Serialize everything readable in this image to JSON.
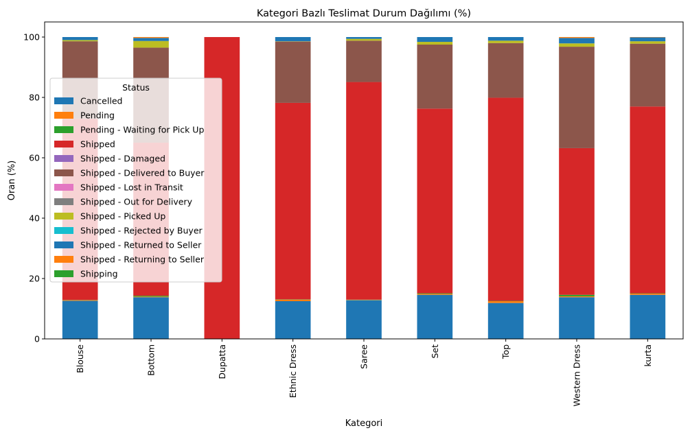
{
  "chart_data": {
    "type": "bar",
    "stacked": true,
    "title": "Kategori Bazlı Teslimat Durum Dağılımı (%)",
    "xlabel": "Kategori",
    "ylabel": "Oran (%)",
    "ylim": [
      0,
      105
    ],
    "yticks": [
      0,
      20,
      40,
      60,
      80,
      100
    ],
    "grid": false,
    "legend": {
      "title": "Status",
      "position": "center-left"
    },
    "categories": [
      "Blouse",
      "Bottom",
      "Dupatta",
      "Ethnic Dress",
      "Saree",
      "Set",
      "Top",
      "Western Dress",
      "kurta"
    ],
    "series": [
      {
        "name": "Cancelled",
        "color": "#1f77b4",
        "values": [
          12.6,
          13.8,
          0,
          12.5,
          12.8,
          14.6,
          11.9,
          13.8,
          14.6
        ]
      },
      {
        "name": "Pending",
        "color": "#ff7f0e",
        "values": [
          0.2,
          0.2,
          0,
          0.5,
          0.1,
          0.3,
          0.6,
          0.3,
          0.4
        ]
      },
      {
        "name": "Pending - Waiting for Pick Up",
        "color": "#2ca02c",
        "values": [
          0.1,
          0.3,
          0,
          0.1,
          0.1,
          0.2,
          0.1,
          0.5,
          0.1
        ]
      },
      {
        "name": "Shipped",
        "color": "#d62728",
        "values": [
          60.0,
          50.7,
          100,
          65.1,
          72.1,
          61.2,
          67.3,
          48.6,
          61.9
        ]
      },
      {
        "name": "Shipped - Damaged",
        "color": "#9467bd",
        "values": [
          0,
          0,
          0,
          0,
          0,
          0,
          0,
          0,
          0
        ]
      },
      {
        "name": "Shipped - Delivered to Buyer",
        "color": "#8c564b",
        "values": [
          25.7,
          31.5,
          0,
          20.3,
          13.7,
          21.2,
          18.1,
          33.6,
          20.8
        ]
      },
      {
        "name": "Shipped - Lost in Transit",
        "color": "#e377c2",
        "values": [
          0,
          0,
          0,
          0,
          0,
          0,
          0,
          0,
          0
        ]
      },
      {
        "name": "Shipped - Out for Delivery",
        "color": "#7f7f7f",
        "values": [
          0,
          0,
          0,
          0,
          0,
          0,
          0,
          0,
          0
        ]
      },
      {
        "name": "Shipped - Picked Up",
        "color": "#bcbd22",
        "values": [
          0.4,
          2.2,
          0,
          0.1,
          0.6,
          0.9,
          0.8,
          1.1,
          0.8
        ]
      },
      {
        "name": "Shipped - Rejected by Buyer",
        "color": "#17becf",
        "values": [
          0,
          0,
          0,
          0,
          0,
          0,
          0,
          0,
          0
        ]
      },
      {
        "name": "Shipped - Returned to Seller",
        "color": "#1f77b4",
        "values": [
          1.0,
          1.0,
          0,
          1.4,
          0.6,
          1.6,
          1.2,
          1.8,
          1.3
        ]
      },
      {
        "name": "Shipped - Returning to Seller",
        "color": "#ff7f0e",
        "values": [
          0,
          0.3,
          0,
          0,
          0,
          0,
          0,
          0.3,
          0.1
        ]
      },
      {
        "name": "Shipping",
        "color": "#2ca02c",
        "values": [
          0,
          0,
          0,
          0,
          0,
          0,
          0,
          0,
          0
        ]
      }
    ]
  }
}
